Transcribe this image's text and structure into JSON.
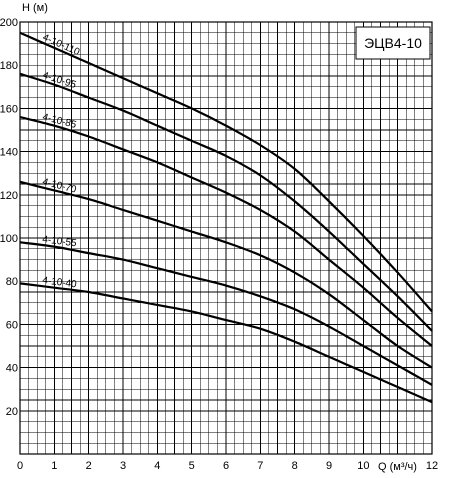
{
  "chart_data": {
    "type": "line",
    "title": "ЭЦВ4-10",
    "xlabel": "Q (м³/ч)",
    "ylabel": "H (м)",
    "xlim": [
      0,
      12
    ],
    "ylim": [
      0,
      200
    ],
    "x_ticks": [
      "0",
      "1",
      "2",
      "3",
      "4",
      "5",
      "6",
      "7",
      "8",
      "9",
      "10",
      "12"
    ],
    "y_ticks": [
      "20",
      "40",
      "60",
      "80",
      "100",
      "120",
      "140",
      "160",
      "180",
      "200"
    ],
    "grid": true,
    "x_minor_step": 0.25,
    "y_minor_step": 5,
    "series": [
      {
        "name": "4-10-110",
        "x": [
          0,
          1,
          2,
          3,
          4,
          5,
          6,
          7,
          8,
          9,
          10,
          11,
          12
        ],
        "y": [
          195,
          188,
          181,
          174,
          167,
          160,
          152,
          143,
          132,
          117,
          101,
          84,
          66
        ]
      },
      {
        "name": "4-10-95",
        "x": [
          0,
          1,
          2,
          3,
          4,
          5,
          6,
          7,
          8,
          9,
          10,
          11,
          12
        ],
        "y": [
          176,
          171,
          165,
          159,
          152,
          145,
          138,
          129,
          117,
          103,
          88,
          73,
          57
        ]
      },
      {
        "name": "4-10-85",
        "x": [
          0,
          1,
          2,
          3,
          4,
          5,
          6,
          7,
          8,
          9,
          10,
          11,
          12
        ],
        "y": [
          156,
          152,
          147,
          141,
          135,
          128,
          121,
          113,
          103,
          90,
          77,
          63,
          50
        ]
      },
      {
        "name": "4-10-70",
        "x": [
          0,
          1,
          2,
          3,
          4,
          5,
          6,
          7,
          8,
          9,
          10,
          11,
          12
        ],
        "y": [
          126,
          122,
          118,
          113,
          108,
          103,
          98,
          92,
          84,
          74,
          62,
          50,
          40
        ]
      },
      {
        "name": "4-10-55",
        "x": [
          0,
          1,
          2,
          3,
          4,
          5,
          6,
          7,
          8,
          9,
          10,
          11,
          12
        ],
        "y": [
          98,
          96,
          93,
          90,
          86,
          82,
          78,
          73,
          67,
          59,
          50,
          41,
          32
        ]
      },
      {
        "name": "4-10-40",
        "x": [
          0,
          1,
          2,
          3,
          4,
          5,
          6,
          7,
          8,
          9,
          10,
          11,
          12
        ],
        "y": [
          79,
          77,
          75,
          72,
          69,
          66,
          62,
          58,
          52,
          45,
          38,
          31,
          24
        ]
      }
    ]
  }
}
